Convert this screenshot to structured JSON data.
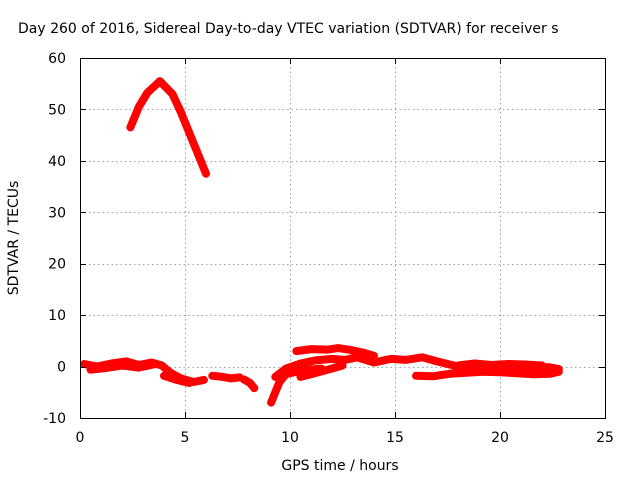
{
  "chart_data": {
    "type": "scatter",
    "title": "Day 260 of 2016, Sidereal Day-to-day VTEC variation (SDTVAR) for receiver s",
    "xlabel": "GPS time / hours",
    "ylabel": "SDTVAR / TECUs",
    "xlim": [
      0,
      25
    ],
    "ylim": [
      -10,
      60
    ],
    "xticks": [
      0,
      5,
      10,
      15,
      20,
      25
    ],
    "yticks": [
      -10,
      0,
      10,
      20,
      30,
      40,
      50,
      60
    ],
    "grid": true,
    "legend": "none",
    "series_color": "#ff0000",
    "segments": [
      {
        "points": [
          [
            2.4,
            46.5
          ],
          [
            2.8,
            50.5
          ],
          [
            3.2,
            53.2
          ],
          [
            3.8,
            55.5
          ],
          [
            4.4,
            53.0
          ],
          [
            4.8,
            49.5
          ],
          [
            5.2,
            45.5
          ],
          [
            5.6,
            41.5
          ],
          [
            6.0,
            37.5
          ]
        ]
      },
      {
        "points": [
          [
            0.2,
            0.5
          ],
          [
            0.8,
            0.0
          ],
          [
            1.5,
            0.6
          ],
          [
            2.2,
            1.0
          ],
          [
            2.8,
            0.3
          ],
          [
            3.4,
            0.8
          ],
          [
            3.9,
            0.2
          ],
          [
            4.3,
            -1.2
          ],
          [
            4.8,
            -2.3
          ],
          [
            5.4,
            -3.0
          ],
          [
            5.9,
            -2.6
          ]
        ]
      },
      {
        "points": [
          [
            0.5,
            -0.6
          ],
          [
            1.2,
            -0.3
          ],
          [
            2.0,
            0.2
          ],
          [
            2.8,
            -0.2
          ],
          [
            3.6,
            0.5
          ]
        ]
      },
      {
        "points": [
          [
            4.0,
            -1.8
          ],
          [
            4.6,
            -2.6
          ],
          [
            5.2,
            -3.2
          ]
        ]
      },
      {
        "points": [
          [
            6.3,
            -1.8
          ],
          [
            6.8,
            -2.0
          ],
          [
            7.2,
            -2.3
          ],
          [
            7.6,
            -2.1
          ]
        ]
      },
      {
        "points": [
          [
            7.8,
            -2.5
          ],
          [
            8.1,
            -3.2
          ],
          [
            8.3,
            -4.2
          ]
        ]
      },
      {
        "points": [
          [
            9.1,
            -7.0
          ],
          [
            9.3,
            -5.0
          ],
          [
            9.5,
            -3.0
          ],
          [
            9.8,
            -1.5
          ],
          [
            10.3,
            -1.0
          ],
          [
            10.9,
            -0.6
          ],
          [
            11.5,
            -0.4
          ]
        ]
      },
      {
        "points": [
          [
            9.3,
            -2.0
          ],
          [
            9.8,
            -0.4
          ],
          [
            10.5,
            0.6
          ],
          [
            11.2,
            1.2
          ],
          [
            12.0,
            1.5
          ],
          [
            12.6,
            1.3
          ],
          [
            13.2,
            1.8
          ],
          [
            14.0,
            0.8
          ],
          [
            14.8,
            1.5
          ],
          [
            15.5,
            1.3
          ],
          [
            16.3,
            1.8
          ],
          [
            17.0,
            1.0
          ],
          [
            17.8,
            0.2
          ],
          [
            18.5,
            -0.6
          ],
          [
            19.2,
            -0.4
          ],
          [
            20.0,
            -0.1
          ],
          [
            20.8,
            -0.5
          ],
          [
            21.5,
            -0.2
          ],
          [
            22.3,
            -0.1
          ],
          [
            22.8,
            -0.5
          ]
        ]
      },
      {
        "points": [
          [
            10.3,
            3.0
          ],
          [
            11.0,
            3.4
          ],
          [
            11.8,
            3.3
          ],
          [
            12.3,
            3.6
          ],
          [
            12.9,
            3.2
          ],
          [
            13.5,
            2.7
          ],
          [
            14.0,
            2.1
          ]
        ]
      },
      {
        "points": [
          [
            10.5,
            -2.0
          ],
          [
            11.0,
            -1.5
          ],
          [
            11.8,
            -0.6
          ],
          [
            12.5,
            0.2
          ]
        ]
      },
      {
        "points": [
          [
            16.0,
            -1.8
          ],
          [
            16.8,
            -1.9
          ],
          [
            17.6,
            -1.4
          ],
          [
            18.4,
            -1.2
          ],
          [
            19.2,
            -1.0
          ],
          [
            20.0,
            -1.1
          ],
          [
            20.8,
            -1.3
          ],
          [
            21.6,
            -1.5
          ],
          [
            22.4,
            -1.4
          ],
          [
            22.8,
            -1.0
          ]
        ]
      },
      {
        "points": [
          [
            18.0,
            0.2
          ],
          [
            18.8,
            0.6
          ],
          [
            19.6,
            0.3
          ],
          [
            20.4,
            0.5
          ],
          [
            21.2,
            0.4
          ],
          [
            22.0,
            0.2
          ]
        ]
      }
    ]
  }
}
